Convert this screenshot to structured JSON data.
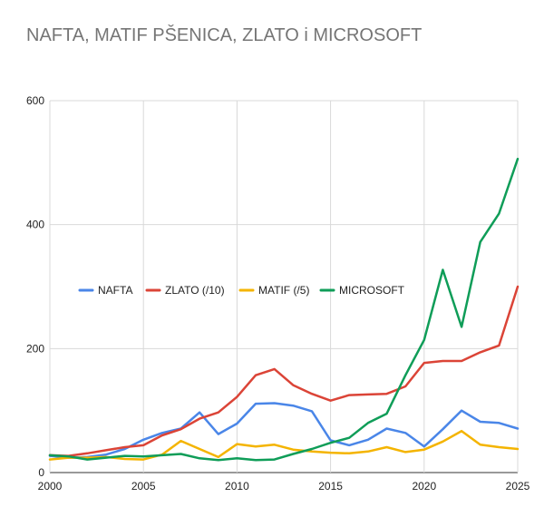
{
  "chart_data": {
    "type": "line",
    "title": "NAFTA, MATIF PŠENICA, ZLATO i MICROSOFT",
    "xlabel": "",
    "ylabel": "",
    "xlim": [
      2000,
      2025
    ],
    "ylim": [
      0,
      600
    ],
    "x_ticks": [
      2000,
      2005,
      2010,
      2015,
      2020,
      2025
    ],
    "y_ticks": [
      0,
      200,
      400,
      600
    ],
    "grid": true,
    "legend_position": "center-left",
    "x": [
      2000,
      2001,
      2002,
      2003,
      2004,
      2005,
      2006,
      2007,
      2008,
      2009,
      2010,
      2011,
      2012,
      2013,
      2014,
      2015,
      2016,
      2017,
      2018,
      2019,
      2020,
      2021,
      2022,
      2023,
      2024,
      2025
    ],
    "series": [
      {
        "name": "NAFTA",
        "color": "#4a86e8",
        "values": [
          27,
          24,
          25,
          29,
          38,
          53,
          64,
          71,
          97,
          62,
          79,
          111,
          112,
          108,
          99,
          52,
          44,
          53,
          71,
          64,
          42,
          70,
          100,
          82,
          80,
          71
        ]
      },
      {
        "name": "ZLATO (/10)",
        "color": "#db4437",
        "values": [
          28,
          27,
          31,
          36,
          41,
          44,
          60,
          70,
          87,
          97,
          122,
          157,
          167,
          141,
          127,
          116,
          125,
          126,
          127,
          139,
          177,
          180,
          180,
          194,
          205,
          300
        ]
      },
      {
        "name": "MATIF (/5)",
        "color": "#f4b400",
        "values": [
          21,
          24,
          24,
          25,
          22,
          21,
          29,
          51,
          38,
          25,
          46,
          42,
          45,
          37,
          34,
          32,
          31,
          34,
          41,
          33,
          37,
          50,
          67,
          45,
          41,
          38
        ]
      },
      {
        "name": "MICROSOFT",
        "color": "#0f9d58",
        "values": [
          28,
          26,
          21,
          24,
          27,
          26,
          28,
          30,
          23,
          20,
          23,
          20,
          21,
          30,
          38,
          48,
          56,
          80,
          95,
          157,
          214,
          327,
          235,
          372,
          418,
          506
        ]
      }
    ]
  }
}
